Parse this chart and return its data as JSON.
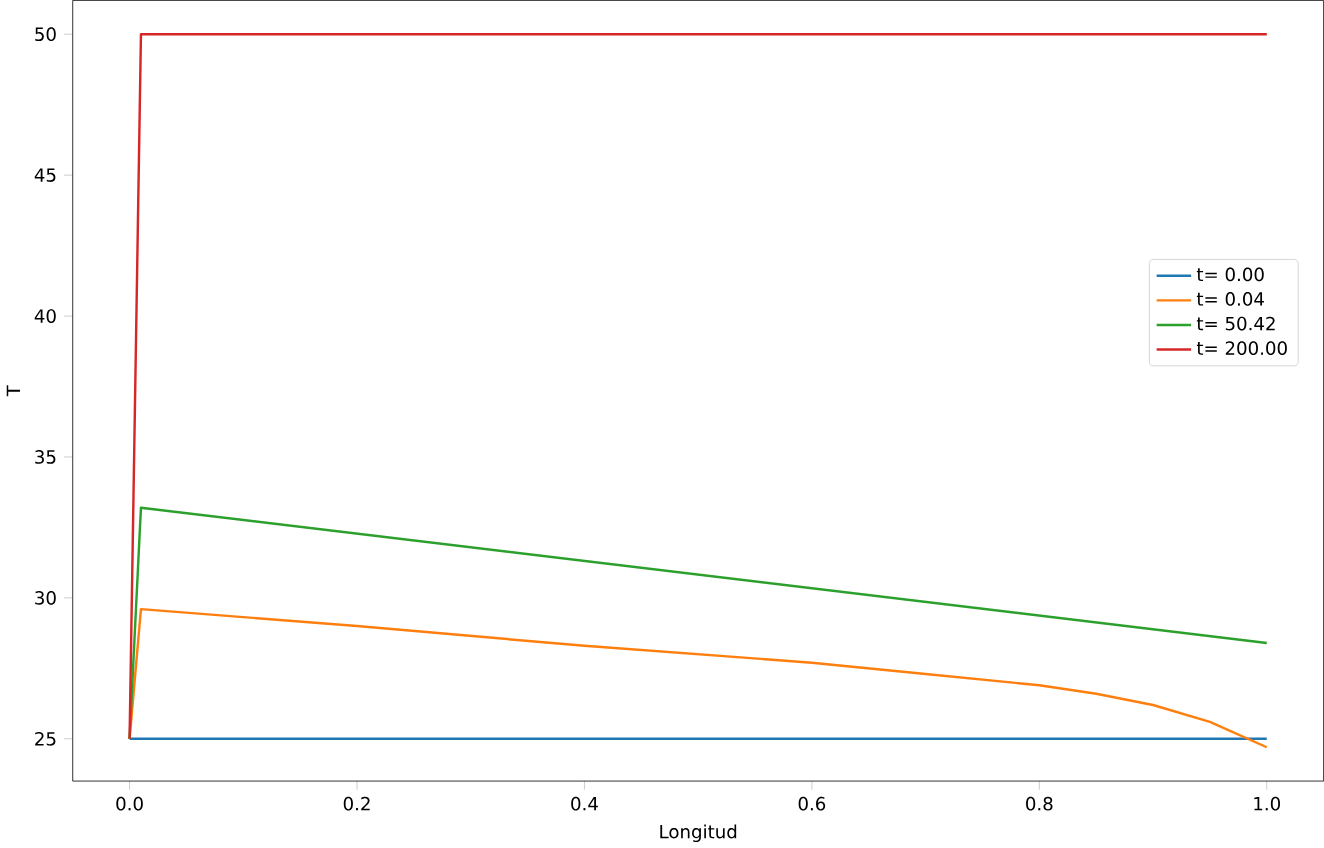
{
  "chart_data": {
    "type": "line",
    "xlabel": "Longitud",
    "ylabel": "T",
    "xlim": [
      -0.05,
      1.05
    ],
    "ylim": [
      23.5,
      51.2
    ],
    "xticks": [
      {
        "value": 0,
        "label": "0.0"
      },
      0.2,
      0.4,
      0.6,
      0.8,
      {
        "value": 1,
        "label": "1.0"
      }
    ],
    "yticks": [
      25,
      30,
      35,
      40,
      45,
      50
    ],
    "legend": "right",
    "grid": false,
    "series": [
      {
        "name": "t= 0.00",
        "color": "#1f77b4",
        "x": [
          0,
          1
        ],
        "values": [
          25,
          25
        ]
      },
      {
        "name": "t= 0.04",
        "color": "#ff7f0e",
        "x": [
          0,
          0.01,
          0.2,
          0.4,
          0.6,
          0.7,
          0.8,
          0.85,
          0.9,
          0.95,
          1.0
        ],
        "values": [
          25,
          29.6,
          29.0,
          28.3,
          27.7,
          27.3,
          26.9,
          26.6,
          26.2,
          25.6,
          24.7
        ]
      },
      {
        "name": "t= 50.42",
        "color": "#2ca02c",
        "x": [
          0,
          0.01,
          1.0
        ],
        "values": [
          25,
          33.2,
          28.4
        ]
      },
      {
        "name": "t= 200.00",
        "color": "#d62728",
        "x": [
          0,
          0.01,
          1.0
        ],
        "values": [
          25,
          50,
          50
        ]
      }
    ]
  }
}
